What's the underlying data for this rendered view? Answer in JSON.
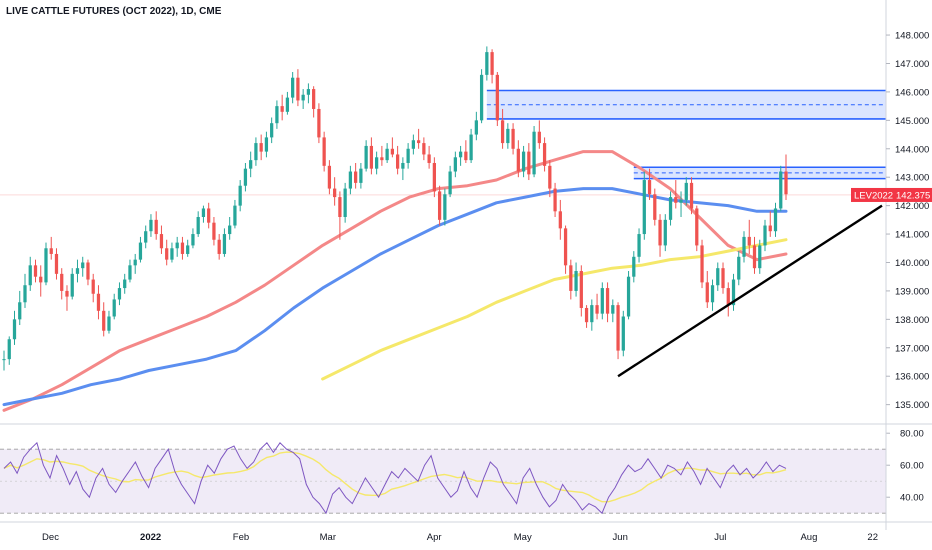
{
  "chart_data": {
    "type": "candlestick",
    "title": "LIVE CATTLE FUTURES (OCT 2022), 1D, CME",
    "y_ticks": [
      "148.000",
      "147.000",
      "146.000",
      "145.000",
      "144.000",
      "143.000",
      "142.000",
      "141.000",
      "140.000",
      "139.000",
      "138.000",
      "137.000",
      "136.000",
      "135.000"
    ],
    "y_range": [
      134.6,
      148.6
    ],
    "x_labels": [
      "Dec",
      "2022",
      "Feb",
      "Mar",
      "Apr",
      "May",
      "Jun",
      "Jul",
      "Aug",
      "22"
    ],
    "x_labels_bold": [
      "2022"
    ],
    "price_badge": {
      "symbol": "LEV2022",
      "value": "142.375",
      "price": 142.375,
      "color": "#f23645"
    },
    "candle_colors": {
      "up": "#26a69a",
      "down": "#ef5350"
    },
    "candles_ohlc": [
      [
        136.6,
        136.9,
        136.2,
        136.6
      ],
      [
        136.6,
        137.4,
        136.4,
        137.3
      ],
      [
        137.3,
        138.3,
        137.1,
        138.0
      ],
      [
        138.0,
        139.0,
        137.8,
        138.6
      ],
      [
        138.6,
        139.6,
        138.4,
        139.2
      ],
      [
        139.2,
        140.2,
        139.0,
        139.9
      ],
      [
        139.9,
        140.1,
        139.3,
        139.5
      ],
      [
        139.5,
        139.9,
        138.8,
        139.3
      ],
      [
        139.3,
        140.7,
        139.2,
        140.5
      ],
      [
        140.5,
        140.9,
        140.1,
        140.3
      ],
      [
        140.3,
        140.5,
        139.4,
        139.6
      ],
      [
        139.6,
        139.8,
        138.7,
        139.0
      ],
      [
        139.0,
        139.2,
        138.3,
        138.8
      ],
      [
        138.8,
        139.8,
        138.7,
        139.6
      ],
      [
        139.6,
        140.1,
        139.3,
        139.8
      ],
      [
        139.8,
        140.2,
        139.5,
        140.0
      ],
      [
        140.0,
        140.1,
        139.2,
        139.4
      ],
      [
        139.4,
        139.6,
        138.6,
        138.9
      ],
      [
        138.9,
        139.2,
        138.0,
        138.3
      ],
      [
        138.3,
        138.6,
        137.4,
        137.6
      ],
      [
        137.6,
        138.3,
        137.5,
        138.1
      ],
      [
        138.1,
        138.9,
        138.0,
        138.7
      ],
      [
        138.7,
        139.3,
        138.5,
        139.1
      ],
      [
        139.1,
        139.6,
        138.9,
        139.4
      ],
      [
        139.4,
        140.1,
        139.3,
        139.9
      ],
      [
        139.9,
        140.3,
        139.6,
        140.1
      ],
      [
        140.1,
        140.9,
        140.0,
        140.7
      ],
      [
        140.7,
        141.3,
        140.5,
        141.1
      ],
      [
        141.1,
        141.7,
        140.9,
        141.5
      ],
      [
        141.5,
        141.8,
        140.8,
        141.0
      ],
      [
        141.0,
        141.3,
        140.3,
        140.5
      ],
      [
        140.5,
        140.8,
        139.9,
        140.1
      ],
      [
        140.1,
        140.7,
        140.0,
        140.5
      ],
      [
        140.5,
        140.9,
        140.2,
        140.7
      ],
      [
        140.7,
        140.9,
        140.1,
        140.3
      ],
      [
        140.3,
        140.8,
        140.2,
        140.6
      ],
      [
        140.6,
        141.2,
        140.5,
        141.0
      ],
      [
        141.0,
        141.8,
        140.9,
        141.6
      ],
      [
        141.6,
        142.0,
        141.4,
        141.9
      ],
      [
        141.9,
        142.1,
        141.2,
        141.4
      ],
      [
        141.4,
        141.6,
        140.6,
        140.8
      ],
      [
        140.8,
        141.0,
        140.1,
        140.3
      ],
      [
        140.3,
        141.2,
        140.2,
        141.0
      ],
      [
        141.0,
        141.6,
        140.8,
        141.3
      ],
      [
        141.3,
        142.2,
        141.2,
        142.0
      ],
      [
        142.0,
        142.9,
        141.8,
        142.7
      ],
      [
        142.7,
        143.5,
        142.5,
        143.3
      ],
      [
        143.3,
        143.9,
        143.0,
        143.6
      ],
      [
        143.6,
        144.4,
        143.4,
        144.2
      ],
      [
        144.2,
        144.5,
        143.6,
        143.9
      ],
      [
        143.9,
        144.6,
        143.7,
        144.4
      ],
      [
        144.4,
        145.1,
        144.2,
        144.9
      ],
      [
        144.9,
        145.7,
        144.7,
        145.5
      ],
      [
        145.5,
        145.9,
        145.0,
        145.3
      ],
      [
        145.3,
        146.0,
        145.2,
        145.8
      ],
      [
        145.8,
        146.7,
        145.6,
        146.5
      ],
      [
        146.5,
        146.8,
        145.5,
        145.7
      ],
      [
        145.7,
        146.1,
        145.4,
        145.9
      ],
      [
        145.9,
        146.3,
        145.6,
        146.1
      ],
      [
        146.1,
        146.2,
        145.1,
        145.4
      ],
      [
        145.4,
        145.6,
        144.2,
        144.4
      ],
      [
        144.4,
        144.6,
        143.2,
        143.4
      ],
      [
        143.4,
        143.6,
        142.4,
        142.6
      ],
      [
        142.6,
        143.0,
        142.0,
        142.3
      ],
      [
        142.3,
        142.5,
        140.8,
        141.6
      ],
      [
        141.6,
        142.8,
        141.4,
        142.6
      ],
      [
        142.6,
        143.4,
        142.4,
        143.2
      ],
      [
        143.2,
        143.5,
        142.6,
        142.8
      ],
      [
        142.8,
        143.5,
        142.6,
        143.3
      ],
      [
        143.3,
        144.3,
        143.2,
        144.1
      ],
      [
        144.1,
        144.4,
        143.1,
        143.3
      ],
      [
        143.3,
        143.9,
        143.1,
        143.7
      ],
      [
        143.7,
        144.1,
        143.4,
        143.6
      ],
      [
        143.6,
        144.2,
        143.5,
        144.0
      ],
      [
        144.0,
        144.4,
        143.7,
        143.8
      ],
      [
        143.8,
        144.1,
        143.1,
        143.3
      ],
      [
        143.3,
        143.7,
        142.9,
        143.5
      ],
      [
        143.5,
        144.2,
        143.3,
        144.0
      ],
      [
        144.0,
        144.5,
        143.8,
        144.3
      ],
      [
        144.3,
        144.7,
        144.0,
        144.2
      ],
      [
        144.2,
        144.4,
        143.6,
        143.8
      ],
      [
        143.8,
        144.1,
        143.3,
        143.5
      ],
      [
        143.5,
        143.7,
        142.3,
        142.5
      ],
      [
        142.5,
        142.7,
        141.3,
        141.5
      ],
      [
        141.5,
        142.6,
        141.3,
        142.4
      ],
      [
        142.4,
        143.4,
        142.3,
        143.2
      ],
      [
        143.2,
        143.9,
        143.0,
        143.7
      ],
      [
        143.7,
        144.1,
        143.4,
        143.9
      ],
      [
        143.9,
        144.3,
        143.5,
        143.6
      ],
      [
        143.6,
        144.7,
        143.5,
        144.5
      ],
      [
        144.5,
        145.3,
        144.3,
        145.0
      ],
      [
        145.0,
        146.8,
        144.9,
        146.6
      ],
      [
        146.6,
        147.6,
        146.4,
        147.4
      ],
      [
        147.4,
        147.5,
        146.3,
        146.6
      ],
      [
        146.6,
        146.7,
        144.8,
        145.0
      ],
      [
        145.0,
        145.4,
        144.0,
        144.2
      ],
      [
        144.2,
        144.9,
        144.0,
        144.7
      ],
      [
        144.7,
        144.9,
        143.8,
        144.0
      ],
      [
        144.0,
        144.3,
        143.0,
        143.2
      ],
      [
        143.2,
        144.1,
        143.0,
        143.9
      ],
      [
        143.9,
        144.2,
        142.9,
        143.1
      ],
      [
        143.1,
        144.8,
        143.0,
        144.6
      ],
      [
        144.6,
        145.0,
        144.0,
        144.2
      ],
      [
        144.2,
        144.4,
        143.2,
        143.4
      ],
      [
        143.4,
        143.6,
        142.3,
        142.6
      ],
      [
        142.6,
        142.8,
        141.6,
        141.8
      ],
      [
        141.8,
        142.2,
        140.8,
        141.2
      ],
      [
        141.2,
        141.3,
        139.6,
        139.9
      ],
      [
        139.9,
        140.1,
        138.7,
        139.0
      ],
      [
        139.0,
        140.0,
        138.8,
        139.7
      ],
      [
        139.7,
        139.9,
        138.1,
        138.4
      ],
      [
        138.4,
        138.5,
        137.7,
        137.9
      ],
      [
        137.9,
        138.7,
        137.6,
        138.5
      ],
      [
        138.5,
        138.9,
        138.0,
        138.2
      ],
      [
        138.2,
        139.3,
        138.0,
        139.1
      ],
      [
        139.1,
        139.3,
        137.9,
        138.2
      ],
      [
        138.2,
        138.7,
        137.9,
        138.5
      ],
      [
        138.5,
        138.6,
        136.6,
        136.9
      ],
      [
        136.9,
        138.3,
        136.7,
        138.1
      ],
      [
        138.1,
        139.7,
        138.0,
        139.5
      ],
      [
        139.5,
        140.4,
        139.3,
        140.2
      ],
      [
        140.2,
        141.2,
        140.0,
        141.0
      ],
      [
        141.0,
        143.2,
        140.8,
        142.9
      ],
      [
        142.9,
        143.3,
        142.2,
        142.4
      ],
      [
        142.4,
        142.6,
        141.3,
        141.5
      ],
      [
        141.5,
        141.7,
        140.2,
        140.6
      ],
      [
        140.6,
        141.7,
        140.4,
        141.5
      ],
      [
        141.5,
        142.5,
        141.3,
        142.3
      ],
      [
        142.3,
        142.9,
        141.9,
        142.1
      ],
      [
        142.1,
        142.5,
        141.6,
        142.2
      ],
      [
        142.2,
        143.0,
        142.0,
        142.8
      ],
      [
        142.8,
        143.0,
        141.7,
        141.9
      ],
      [
        141.9,
        142.0,
        140.4,
        140.6
      ],
      [
        140.6,
        140.8,
        139.1,
        139.3
      ],
      [
        139.3,
        139.7,
        138.4,
        138.6
      ],
      [
        138.6,
        139.4,
        138.3,
        139.2
      ],
      [
        139.2,
        140.0,
        139.0,
        139.8
      ],
      [
        139.8,
        140.0,
        138.9,
        139.1
      ],
      [
        139.1,
        139.3,
        138.1,
        138.5
      ],
      [
        138.5,
        139.6,
        138.3,
        139.4
      ],
      [
        139.4,
        140.4,
        139.2,
        140.2
      ],
      [
        140.2,
        141.1,
        140.0,
        140.9
      ],
      [
        140.9,
        141.5,
        140.3,
        140.6
      ],
      [
        140.6,
        140.9,
        139.6,
        139.8
      ],
      [
        139.8,
        140.8,
        139.6,
        140.6
      ],
      [
        140.6,
        141.5,
        140.4,
        141.3
      ],
      [
        141.3,
        141.8,
        140.9,
        141.1
      ],
      [
        141.1,
        142.1,
        140.9,
        141.9
      ],
      [
        141.9,
        143.4,
        141.8,
        143.2
      ],
      [
        143.2,
        143.8,
        142.2,
        142.4
      ]
    ],
    "moving_averages": [
      {
        "color": "#f48888",
        "label": "",
        "values": [
          134.8,
          135.2,
          135.7,
          136.3,
          136.9,
          137.3,
          137.7,
          138.1,
          138.6,
          139.2,
          139.9,
          140.6,
          141.2,
          141.8,
          142.3,
          142.6,
          142.7,
          142.9,
          143.3,
          143.6,
          143.9,
          143.9,
          143.3,
          142.6,
          141.6,
          140.6,
          140.1,
          140.3
        ]
      },
      {
        "color": "#5b8ef0",
        "label": "",
        "values": [
          135.0,
          135.2,
          135.4,
          135.7,
          135.9,
          136.2,
          136.4,
          136.6,
          136.9,
          137.6,
          138.4,
          139.1,
          139.7,
          140.3,
          140.8,
          141.3,
          141.7,
          142.1,
          142.3,
          142.5,
          142.6,
          142.6,
          142.4,
          142.2,
          142.1,
          142.0,
          141.8,
          141.8
        ]
      },
      {
        "color": "#f5e86a",
        "label": "",
        "values": [
          null,
          null,
          null,
          null,
          null,
          null,
          null,
          null,
          null,
          null,
          null,
          135.9,
          136.4,
          136.9,
          137.3,
          137.7,
          138.1,
          138.6,
          139.0,
          139.4,
          139.6,
          139.8,
          139.9,
          140.1,
          140.2,
          140.4,
          140.6,
          140.8
        ]
      }
    ],
    "zones": [
      {
        "top": 146.05,
        "bottom": 145.05,
        "mid": 145.55
      },
      {
        "top": 143.35,
        "bottom": 142.95,
        "mid": 143.15
      }
    ],
    "trendline": {
      "start": 136.0,
      "end": 142.0
    },
    "rsi": {
      "y_ticks": [
        "80.00",
        "60.00",
        "40.00"
      ],
      "y_range": [
        27,
        82
      ],
      "upper_band": 70,
      "lower_band": 30,
      "line_color": "#7e57c2",
      "signal_color": "#f5e86a",
      "values": [
        58,
        62,
        55,
        65,
        70,
        74,
        60,
        52,
        66,
        58,
        48,
        56,
        45,
        40,
        52,
        58,
        48,
        43,
        50,
        56,
        62,
        53,
        46,
        58,
        64,
        70,
        56,
        48,
        42,
        36,
        50,
        60,
        55,
        64,
        70,
        72,
        64,
        58,
        62,
        70,
        74,
        68,
        74,
        70,
        68,
        64,
        48,
        40,
        36,
        30,
        42,
        46,
        40,
        36,
        44,
        52,
        46,
        40,
        48,
        56,
        52,
        58,
        54,
        50,
        60,
        66,
        52,
        46,
        40,
        44,
        56,
        46,
        40,
        52,
        62,
        58,
        48,
        42,
        36,
        52,
        58,
        48,
        40,
        34,
        38,
        48,
        42,
        38,
        32,
        36,
        34,
        30,
        40,
        46,
        54,
        60,
        56,
        58,
        64,
        58,
        52,
        60,
        58,
        54,
        62,
        56,
        48,
        58,
        52,
        46,
        56,
        60,
        54,
        58,
        52,
        56,
        62,
        56,
        60,
        58
      ]
    }
  }
}
